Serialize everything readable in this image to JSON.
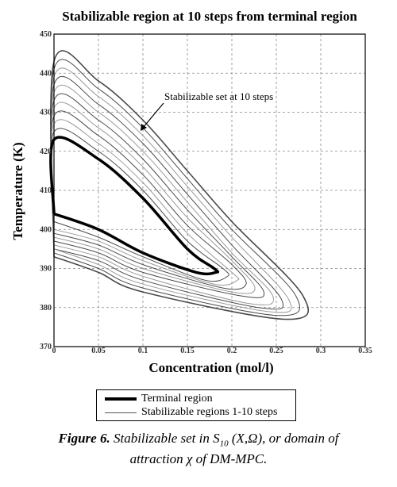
{
  "chart_data": {
    "type": "line",
    "title": "Stabilizable region at 10 steps from terminal region",
    "xlabel": "Concentration (mol/l)",
    "ylabel": "Temperature (K)",
    "xlim": [
      0,
      0.35
    ],
    "ylim": [
      370,
      450
    ],
    "xticks": [
      0,
      0.05,
      0.1,
      0.15,
      0.2,
      0.25,
      0.3,
      0.35
    ],
    "xtick_labels": [
      "0",
      "0.05",
      "0.1",
      "0.15",
      "0.2",
      "0.25",
      "0.3",
      "0.35"
    ],
    "yticks": [
      370,
      380,
      390,
      400,
      410,
      420,
      430,
      440,
      450
    ],
    "ytick_labels": [
      "370",
      "380",
      "390",
      "400",
      "410",
      "420",
      "430",
      "440",
      "450"
    ],
    "grid": true,
    "grid_style": "dashed",
    "annotation": "Stabilizable set at 10 steps",
    "terminal_region": {
      "x": [
        0,
        0,
        0.05,
        0.1,
        0.15,
        0.18,
        0.182,
        0.16,
        0.1,
        0.05,
        0
      ],
      "y": [
        404,
        423,
        418,
        408,
        395,
        390,
        389,
        389,
        394,
        400,
        404
      ]
    },
    "stabilizable_regions": [
      {
        "step": 1,
        "x": [
          0,
          0,
          0.05,
          0.1,
          0.15,
          0.19,
          0.195,
          0.17,
          0.1,
          0.05,
          0
        ],
        "y": [
          402,
          425,
          420,
          410,
          397,
          390,
          388,
          387,
          393,
          398,
          402
        ]
      },
      {
        "step": 2,
        "x": [
          0,
          0,
          0.05,
          0.1,
          0.15,
          0.2,
          0.206,
          0.18,
          0.1,
          0.05,
          0
        ],
        "y": [
          400,
          427,
          422,
          412,
          399,
          389,
          387,
          386,
          392,
          397,
          400
        ]
      },
      {
        "step": 3,
        "x": [
          0,
          0,
          0.05,
          0.1,
          0.15,
          0.2,
          0.216,
          0.19,
          0.1,
          0.05,
          0
        ],
        "y": [
          399,
          429,
          424,
          414,
          401,
          391,
          386,
          385,
          391,
          396,
          399
        ]
      },
      {
        "step": 4,
        "x": [
          0,
          0,
          0.05,
          0.1,
          0.15,
          0.2,
          0.226,
          0.2,
          0.1,
          0.05,
          0
        ],
        "y": [
          398,
          431,
          426,
          416,
          403,
          392,
          385,
          384,
          390,
          395,
          398
        ]
      },
      {
        "step": 5,
        "x": [
          0,
          0,
          0.05,
          0.1,
          0.15,
          0.2,
          0.236,
          0.21,
          0.1,
          0.05,
          0
        ],
        "y": [
          397,
          433,
          428,
          418,
          405,
          393,
          384,
          383,
          389,
          394,
          397
        ]
      },
      {
        "step": 6,
        "x": [
          0,
          0,
          0.05,
          0.1,
          0.15,
          0.2,
          0.246,
          0.22,
          0.1,
          0.05,
          0
        ],
        "y": [
          396,
          435,
          430,
          420,
          407,
          394,
          383,
          381,
          388,
          393,
          396
        ]
      },
      {
        "step": 7,
        "x": [
          0,
          0,
          0.05,
          0.1,
          0.15,
          0.2,
          0.256,
          0.23,
          0.1,
          0.05,
          0
        ],
        "y": [
          395,
          437,
          432,
          422,
          409,
          396,
          382,
          380,
          387,
          392,
          395
        ]
      },
      {
        "step": 8,
        "x": [
          0,
          0,
          0.05,
          0.1,
          0.15,
          0.2,
          0.264,
          0.24,
          0.1,
          0.05,
          0
        ],
        "y": [
          395,
          439,
          434,
          424,
          411,
          398,
          382,
          379,
          386,
          391,
          395
        ]
      },
      {
        "step": 9,
        "x": [
          0,
          0,
          0.05,
          0.1,
          0.15,
          0.2,
          0.272,
          0.25,
          0.1,
          0.05,
          0
        ],
        "y": [
          394,
          441,
          436,
          426,
          413,
          400,
          383,
          378,
          385,
          390,
          394
        ]
      },
      {
        "step": 10,
        "x": [
          0,
          0,
          0.05,
          0.1,
          0.15,
          0.2,
          0.28,
          0.26,
          0.1,
          0.05,
          0
        ],
        "y": [
          393,
          443,
          438,
          428,
          415,
          402,
          383,
          377,
          384,
          389,
          393
        ]
      }
    ],
    "legend": [
      {
        "label": "Terminal region",
        "style": "thick"
      },
      {
        "label": "Stabilizable regions 1-10 steps",
        "style": "thin"
      }
    ]
  },
  "caption": {
    "figure_label": "Figure 6.",
    "text_before_sub": "Stabilizable set in S",
    "subscript": "10",
    "text_after_sub": " (X,Ω), or domain of",
    "line2": "attraction χ of DM-MPC."
  },
  "colors": {
    "terminal": "#000000",
    "stabilizable": "#4a4a4a",
    "inner": "#9a9a9a",
    "grid": "#888888",
    "arrow": "#000000"
  }
}
